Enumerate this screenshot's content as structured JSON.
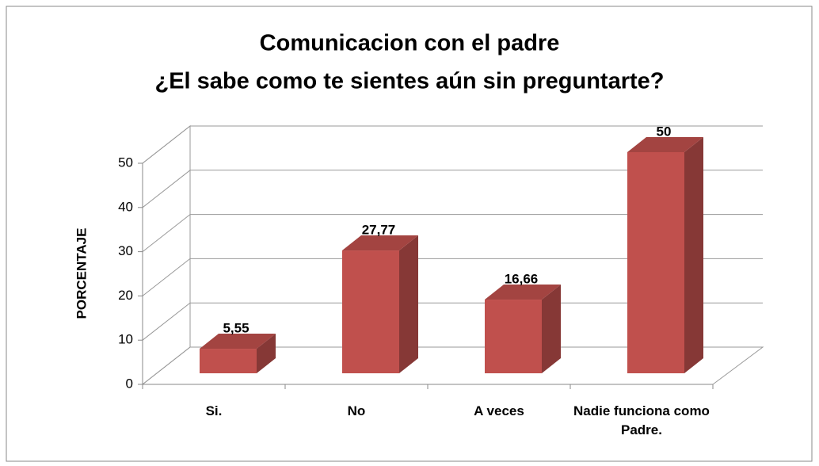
{
  "chart_data": {
    "type": "bar3d",
    "title": "Comunicacion con el padre",
    "subtitle": "¿El sabe como te sientes aún sin preguntarte?",
    "y_label": "PORCENTAJE",
    "categories": [
      "Si.",
      "No",
      "A veces",
      "Nadie funciona como Padre."
    ],
    "values": [
      5.55,
      27.77,
      16.66,
      50
    ],
    "value_labels": [
      "5,55",
      "27,77",
      "16,66",
      "50"
    ],
    "color": "#c0504d",
    "ylim": [
      0,
      50
    ],
    "yticks": [
      0,
      10,
      20,
      30,
      40,
      50
    ],
    "grid": true
  }
}
